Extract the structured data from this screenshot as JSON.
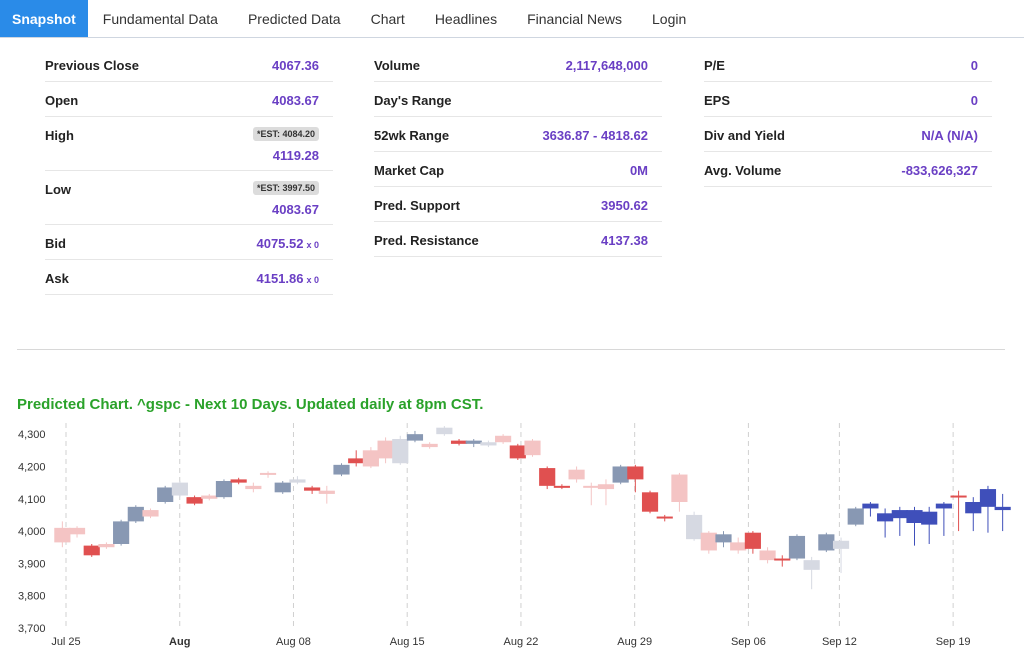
{
  "tabs": [
    {
      "label": "Snapshot",
      "active": true
    },
    {
      "label": "Fundamental Data"
    },
    {
      "label": "Predicted Data"
    },
    {
      "label": "Chart"
    },
    {
      "label": "Headlines"
    },
    {
      "label": "Financial News"
    },
    {
      "label": "Login"
    }
  ],
  "snapshot": {
    "col1": {
      "previous_close": {
        "label": "Previous Close",
        "value": "4067.36"
      },
      "open": {
        "label": "Open",
        "value": "4083.67"
      },
      "high": {
        "label": "High",
        "est": "*EST: 4084.20",
        "value": "4119.28"
      },
      "low": {
        "label": "Low",
        "est": "*EST: 3997.50",
        "value": "4083.67"
      },
      "bid": {
        "label": "Bid",
        "value": "4075.52",
        "suffix": "x 0"
      },
      "ask": {
        "label": "Ask",
        "value": "4151.86",
        "suffix": "x 0"
      }
    },
    "col2": {
      "volume": {
        "label": "Volume",
        "value": "2,117,648,000"
      },
      "days_range": {
        "label": "Day's Range",
        "value": ""
      },
      "range_52wk": {
        "label": "52wk Range",
        "value": "3636.87 - 4818.62"
      },
      "market_cap": {
        "label": "Market Cap",
        "value": "0M"
      },
      "pred_support": {
        "label": "Pred. Support",
        "value": "3950.62"
      },
      "pred_resistance": {
        "label": "Pred. Resistance",
        "value": "4137.38"
      }
    },
    "col3": {
      "pe": {
        "label": "P/E",
        "value": "0"
      },
      "eps": {
        "label": "EPS",
        "value": "0"
      },
      "div_yield": {
        "label": "Div and Yield",
        "value": "N/A (N/A)"
      },
      "avg_volume": {
        "label": "Avg. Volume",
        "value": "-833,626,327"
      }
    }
  },
  "chart": {
    "title": "Predicted Chart. ^gspc - Next 10 Days. Updated daily at 8pm CST."
  },
  "chart_data": {
    "type": "candlestick",
    "ylim": [
      3700,
      4350
    ],
    "yticks": [
      "4,300",
      "4,200",
      "4,100",
      "4,000",
      "3,900",
      "3,800",
      "3,700"
    ],
    "ytick_values": [
      4300,
      4200,
      4100,
      4000,
      3900,
      3800,
      3700
    ],
    "xticks": [
      {
        "label": "Jul 25",
        "index": 0,
        "bold": false
      },
      {
        "label": "Aug",
        "index": 5,
        "bold": true
      },
      {
        "label": "Aug 08",
        "index": 10,
        "bold": false
      },
      {
        "label": "Aug 15",
        "index": 15,
        "bold": false
      },
      {
        "label": "Aug 22",
        "index": 20,
        "bold": false
      },
      {
        "label": "Aug 29",
        "index": 25,
        "bold": false
      },
      {
        "label": "Sep 06",
        "index": 30,
        "bold": false
      },
      {
        "label": "Sep 12",
        "index": 34,
        "bold": false
      },
      {
        "label": "Sep 19",
        "index": 39,
        "bold": false
      }
    ],
    "colors": {
      "pink": "#f4c4c4",
      "red": "#e05050",
      "slate": "#8898b3",
      "light": "#d6d9e2",
      "blue": "#3f4fba",
      "grid": "#d0d0d0"
    },
    "candles": [
      {
        "o": 3965,
        "c": 4010,
        "h": 4030,
        "l": 3950,
        "color": "pink"
      },
      {
        "o": 3990,
        "c": 4010,
        "h": 4015,
        "l": 3980,
        "color": "pink"
      },
      {
        "o": 3955,
        "c": 3925,
        "h": 3960,
        "l": 3920,
        "color": "red"
      },
      {
        "o": 3950,
        "c": 3960,
        "h": 3965,
        "l": 3945,
        "color": "pink"
      },
      {
        "o": 3960,
        "c": 4030,
        "h": 4035,
        "l": 3955,
        "color": "slate"
      },
      {
        "o": 4030,
        "c": 4075,
        "h": 4080,
        "l": 4025,
        "color": "slate"
      },
      {
        "o": 4045,
        "c": 4065,
        "h": 4070,
        "l": 4040,
        "color": "pink"
      },
      {
        "o": 4090,
        "c": 4135,
        "h": 4140,
        "l": 4085,
        "color": "slate"
      },
      {
        "o": 4110,
        "c": 4150,
        "h": 4155,
        "l": 4105,
        "color": "light"
      },
      {
        "o": 4085,
        "c": 4105,
        "h": 4110,
        "l": 4080,
        "color": "red"
      },
      {
        "o": 4100,
        "c": 4110,
        "h": 4115,
        "l": 4095,
        "color": "pink"
      },
      {
        "o": 4105,
        "c": 4155,
        "h": 4160,
        "l": 4100,
        "color": "slate"
      },
      {
        "o": 4150,
        "c": 4160,
        "h": 4165,
        "l": 4145,
        "color": "red"
      },
      {
        "o": 4130,
        "c": 4140,
        "h": 4150,
        "l": 4120,
        "color": "pink"
      },
      {
        "o": 4175,
        "c": 4180,
        "h": 4185,
        "l": 4165,
        "color": "pink"
      },
      {
        "o": 4120,
        "c": 4150,
        "h": 4155,
        "l": 4115,
        "color": "slate"
      },
      {
        "o": 4150,
        "c": 4160,
        "h": 4170,
        "l": 4145,
        "color": "light"
      },
      {
        "o": 4125,
        "c": 4135,
        "h": 4140,
        "l": 4115,
        "color": "red"
      },
      {
        "o": 4115,
        "c": 4125,
        "h": 4140,
        "l": 4085,
        "color": "pink"
      },
      {
        "o": 4175,
        "c": 4205,
        "h": 4210,
        "l": 4170,
        "color": "slate"
      },
      {
        "o": 4210,
        "c": 4225,
        "h": 4250,
        "l": 4200,
        "color": "red"
      },
      {
        "o": 4200,
        "c": 4250,
        "h": 4260,
        "l": 4195,
        "color": "pink"
      },
      {
        "o": 4280,
        "c": 4225,
        "h": 4290,
        "l": 4210,
        "color": "pink"
      },
      {
        "o": 4210,
        "c": 4285,
        "h": 4295,
        "l": 4205,
        "color": "light"
      },
      {
        "o": 4280,
        "c": 4300,
        "h": 4310,
        "l": 4275,
        "color": "slate"
      },
      {
        "o": 4270,
        "c": 4260,
        "h": 4275,
        "l": 4255,
        "color": "pink"
      },
      {
        "o": 4300,
        "c": 4320,
        "h": 4325,
        "l": 4295,
        "color": "light"
      },
      {
        "o": 4280,
        "c": 4270,
        "h": 4285,
        "l": 4265,
        "color": "red"
      },
      {
        "o": 4270,
        "c": 4280,
        "h": 4285,
        "l": 4260,
        "color": "slate"
      },
      {
        "o": 4275,
        "c": 4265,
        "h": 4280,
        "l": 4260,
        "color": "light"
      },
      {
        "o": 4275,
        "c": 4295,
        "h": 4300,
        "l": 4270,
        "color": "pink"
      },
      {
        "o": 4225,
        "c": 4265,
        "h": 4270,
        "l": 4220,
        "color": "red"
      },
      {
        "o": 4235,
        "c": 4280,
        "h": 4285,
        "l": 4230,
        "color": "pink"
      },
      {
        "o": 4195,
        "c": 4140,
        "h": 4200,
        "l": 4130,
        "color": "red"
      },
      {
        "o": 4140,
        "c": 4135,
        "h": 4145,
        "l": 4130,
        "color": "red"
      },
      {
        "o": 4190,
        "c": 4160,
        "h": 4200,
        "l": 4150,
        "color": "pink"
      },
      {
        "o": 4140,
        "c": 4135,
        "h": 4150,
        "l": 4080,
        "color": "pink"
      },
      {
        "o": 4145,
        "c": 4130,
        "h": 4160,
        "l": 4080,
        "color": "pink"
      },
      {
        "o": 4150,
        "c": 4200,
        "h": 4205,
        "l": 4145,
        "color": "slate"
      },
      {
        "o": 4200,
        "c": 4160,
        "h": 4205,
        "l": 4120,
        "color": "red"
      },
      {
        "o": 4120,
        "c": 4060,
        "h": 4125,
        "l": 4055,
        "color": "red"
      },
      {
        "o": 4045,
        "c": 4040,
        "h": 4050,
        "l": 4030,
        "color": "red"
      },
      {
        "o": 4175,
        "c": 4090,
        "h": 4180,
        "l": 4060,
        "color": "pink"
      },
      {
        "o": 3975,
        "c": 4050,
        "h": 4060,
        "l": 3970,
        "color": "light"
      },
      {
        "o": 3995,
        "c": 3940,
        "h": 4000,
        "l": 3930,
        "color": "pink"
      },
      {
        "o": 3965,
        "c": 3990,
        "h": 4000,
        "l": 3950,
        "color": "slate"
      },
      {
        "o": 3940,
        "c": 3965,
        "h": 3980,
        "l": 3930,
        "color": "pink"
      },
      {
        "o": 3995,
        "c": 3945,
        "h": 4000,
        "l": 3930,
        "color": "red"
      },
      {
        "o": 3910,
        "c": 3940,
        "h": 3950,
        "l": 3900,
        "color": "pink"
      },
      {
        "o": 3915,
        "c": 3915,
        "h": 3925,
        "l": 3890,
        "color": "red"
      },
      {
        "o": 3915,
        "c": 3985,
        "h": 3990,
        "l": 3910,
        "color": "slate"
      },
      {
        "o": 3880,
        "c": 3910,
        "h": 3920,
        "l": 3820,
        "color": "light"
      },
      {
        "o": 3940,
        "c": 3990,
        "h": 3995,
        "l": 3935,
        "color": "slate"
      },
      {
        "o": 3945,
        "c": 3970,
        "h": 3980,
        "l": 3870,
        "color": "light"
      },
      {
        "o": 4020,
        "c": 4070,
        "h": 4075,
        "l": 4015,
        "color": "slate"
      },
      {
        "o": 4070,
        "c": 4085,
        "h": 4090,
        "l": 4045,
        "color": "blue"
      },
      {
        "o": 4030,
        "c": 4055,
        "h": 4070,
        "l": 3980,
        "color": "blue"
      },
      {
        "o": 4040,
        "c": 4065,
        "h": 4075,
        "l": 3985,
        "color": "blue"
      },
      {
        "o": 4025,
        "c": 4065,
        "h": 4075,
        "l": 3955,
        "color": "blue"
      },
      {
        "o": 4020,
        "c": 4060,
        "h": 4075,
        "l": 3960,
        "color": "blue"
      },
      {
        "o": 4070,
        "c": 4085,
        "h": 4090,
        "l": 3985,
        "color": "blue"
      },
      {
        "o": 4105,
        "c": 4110,
        "h": 4125,
        "l": 4000,
        "color": "red"
      },
      {
        "o": 4055,
        "c": 4090,
        "h": 4105,
        "l": 4000,
        "color": "blue"
      },
      {
        "o": 4075,
        "c": 4130,
        "h": 4140,
        "l": 3995,
        "color": "blue"
      },
      {
        "o": 4065,
        "c": 4075,
        "h": 4115,
        "l": 4000,
        "color": "blue"
      }
    ]
  }
}
